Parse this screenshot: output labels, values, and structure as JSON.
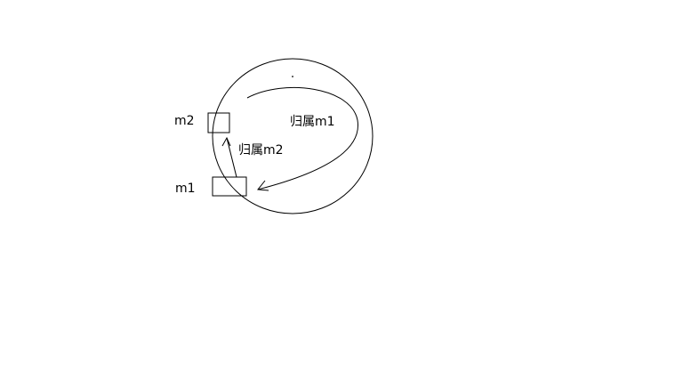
{
  "labels": {
    "m2": "m2",
    "m1": "m1",
    "belongs_m1": "归属m1",
    "belongs_m2": "归属m2"
  },
  "colors": {
    "stroke": "#000000",
    "background": "#ffffff"
  }
}
